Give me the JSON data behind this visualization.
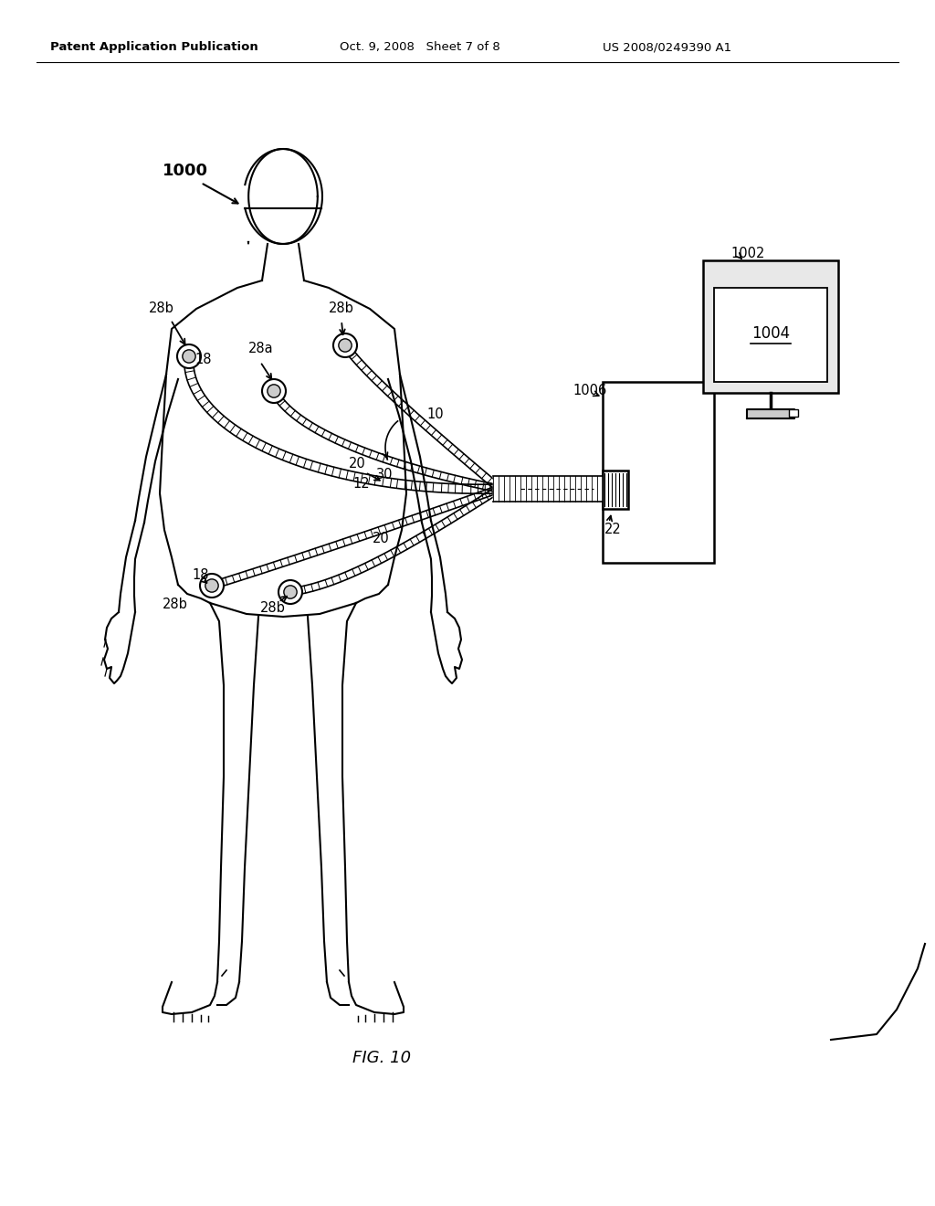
{
  "bg_color": "#ffffff",
  "header_left": "Patent Application Publication",
  "header_mid": "Oct. 9, 2008   Sheet 7 of 8",
  "header_right": "US 2008/0249390 A1",
  "fig_label": "FIG. 10",
  "title_label": "1000",
  "label_10": "10",
  "label_12": "12",
  "label_18": "18",
  "label_20": "20",
  "label_22": "22",
  "label_28a": "28a",
  "label_30": "30",
  "label_1002": "1002",
  "label_1004": "1004",
  "label_1006": "1006"
}
